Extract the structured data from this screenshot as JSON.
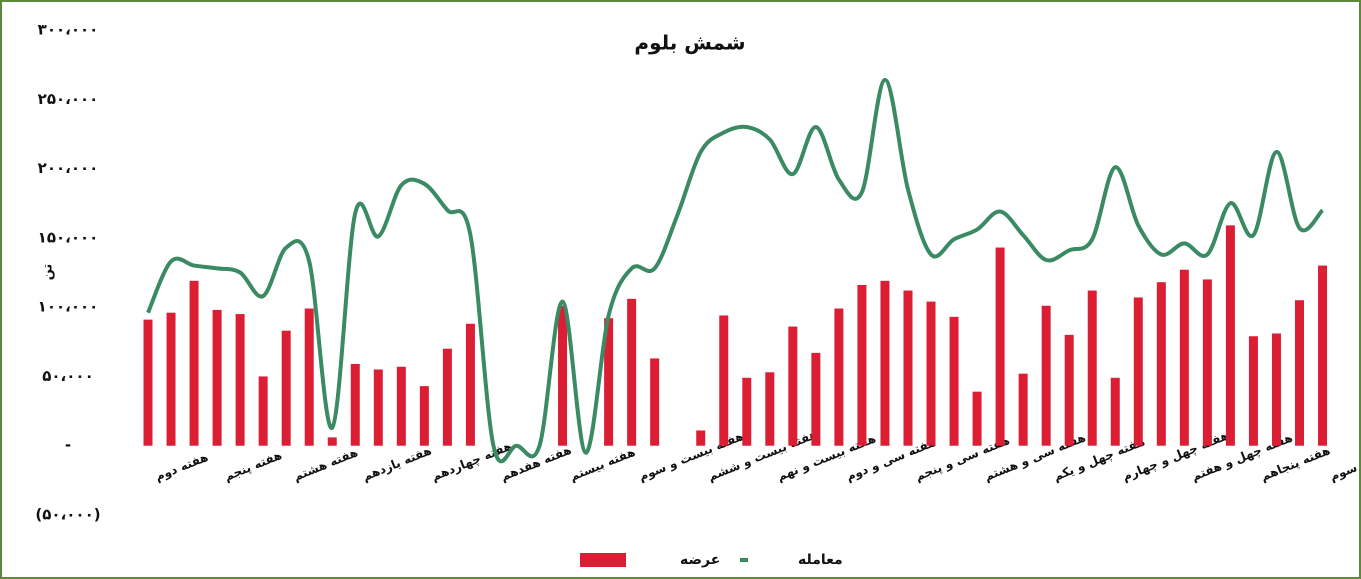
{
  "chart_data": {
    "type": "bar_line",
    "title": "شمش بلوم",
    "y_label": "تن",
    "categories": [
      "هفته دوم",
      null,
      null,
      "هفته پنجم",
      null,
      null,
      "هفته هشتم",
      null,
      null,
      "هفته یازدهم",
      null,
      null,
      "هفته چهاردهم",
      null,
      null,
      "هفته هفدهم",
      null,
      null,
      "هفته بیستم",
      null,
      null,
      "هفته بیست و سوم",
      null,
      null,
      "هفته بیست و ششم",
      null,
      null,
      "هفته بیست و نهم",
      null,
      null,
      "هفته سی و دوم",
      null,
      null,
      "هفته سی و پنجم",
      null,
      null,
      "هفته سی و هشتم",
      null,
      null,
      "هفته چهل و یکم",
      null,
      null,
      "هفته چهل و چهارم",
      null,
      null,
      "هفته چهل و هفتم",
      null,
      null,
      "هفته پنجاهم",
      null,
      null,
      "هفته پنجاه و سوم"
    ],
    "series": [
      {
        "name": "معامله",
        "kind": "bar",
        "color": "#dc1e35",
        "values": [
          91000,
          96000,
          119000,
          98000,
          95000,
          50000,
          83000,
          99000,
          6000,
          59000,
          55000,
          57000,
          43000,
          70000,
          88000,
          0,
          0,
          0,
          101000,
          0,
          92000,
          106000,
          63000,
          0,
          11000,
          94000,
          49000,
          53000,
          86000,
          67000,
          99000,
          116000,
          119000,
          112000,
          104000,
          93000,
          39000,
          143000,
          52000,
          101000,
          80000,
          112000,
          49000,
          107000,
          118000,
          127000,
          120000,
          159000,
          79000,
          81000,
          105000,
          130000
        ]
      },
      {
        "name": "عرضه",
        "kind": "line",
        "color": "#3a8a63",
        "values": [
          96000,
          133000,
          130000,
          128000,
          125000,
          108000,
          143000,
          133000,
          13000,
          168000,
          151000,
          188000,
          189000,
          170000,
          152000,
          0,
          0,
          0,
          104000,
          -5000,
          94000,
          128000,
          128000,
          167000,
          212000,
          226000,
          230000,
          221000,
          196000,
          230000,
          192000,
          183000,
          264000,
          185000,
          138000,
          149000,
          156000,
          169000,
          152000,
          134000,
          141000,
          149000,
          201000,
          159000,
          138000,
          146000,
          138000,
          175000,
          152000,
          212000,
          157000,
          170000
        ]
      }
    ],
    "ylim": [
      -50000,
      300000
    ],
    "yticks": [
      {
        "value": -50000,
        "label": "(۵۰،۰۰۰)"
      },
      {
        "value": 0,
        "label": "-"
      },
      {
        "value": 50000,
        "label": "۵۰،۰۰۰"
      },
      {
        "value": 100000,
        "label": "۱۰۰،۰۰۰"
      },
      {
        "value": 150000,
        "label": "۱۵۰،۰۰۰"
      },
      {
        "value": 200000,
        "label": "۲۰۰،۰۰۰"
      },
      {
        "value": 250000,
        "label": "۲۵۰،۰۰۰"
      },
      {
        "value": 300000,
        "label": "۳۰۰،۰۰۰"
      }
    ],
    "grid": false,
    "legend": "bottom"
  }
}
